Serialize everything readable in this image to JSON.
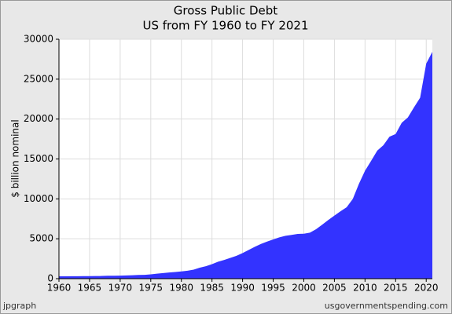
{
  "chart_data": {
    "type": "area",
    "title": "Gross Public Debt",
    "subtitle": "US from FY 1960 to FY 2021",
    "y_label": "$ billion nominal",
    "footer_left": "jpgraph",
    "footer_right": "usgovernmentspending.com",
    "color": "#3333ff",
    "grid": true,
    "x": [
      1960,
      1961,
      1962,
      1963,
      1964,
      1965,
      1966,
      1967,
      1968,
      1969,
      1970,
      1971,
      1972,
      1973,
      1974,
      1975,
      1976,
      1977,
      1978,
      1979,
      1980,
      1981,
      1982,
      1983,
      1984,
      1985,
      1986,
      1987,
      1988,
      1989,
      1990,
      1991,
      1992,
      1993,
      1994,
      1995,
      1996,
      1997,
      1998,
      1999,
      2000,
      2001,
      2002,
      2003,
      2004,
      2005,
      2006,
      2007,
      2008,
      2009,
      2010,
      2011,
      2012,
      2013,
      2014,
      2015,
      2016,
      2017,
      2018,
      2019,
      2020,
      2021
    ],
    "values": [
      290,
      293,
      303,
      310,
      316,
      322,
      328,
      340,
      369,
      366,
      381,
      408,
      436,
      466,
      484,
      542,
      629,
      706,
      777,
      830,
      909,
      995,
      1137,
      1372,
      1565,
      1817,
      2121,
      2346,
      2601,
      2868,
      3206,
      3598,
      4002,
      4351,
      4643,
      4921,
      5182,
      5369,
      5478,
      5606,
      5629,
      5770,
      6198,
      6760,
      7355,
      7905,
      8451,
      8951,
      9986,
      11876,
      13529,
      14764,
      16051,
      16719,
      17795,
      18120,
      19540,
      20206,
      21462,
      22670,
      26945,
      28429
    ],
    "xlim": [
      1960,
      2021
    ],
    "xticks": [
      1960,
      1965,
      1970,
      1975,
      1980,
      1985,
      1990,
      1995,
      2000,
      2005,
      2010,
      2015,
      2020
    ],
    "ylim": [
      0,
      30000
    ],
    "yticks": [
      0,
      5000,
      10000,
      15000,
      20000,
      25000,
      30000
    ]
  }
}
